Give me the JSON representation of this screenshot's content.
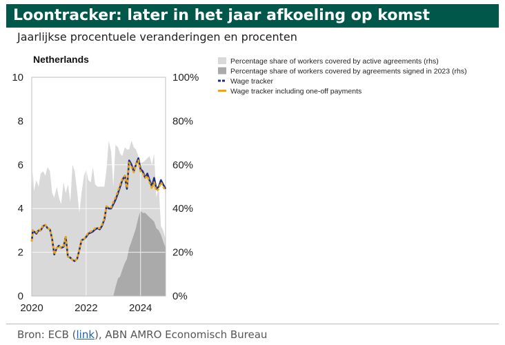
{
  "header": {
    "title": "Loontracker: later in het jaar afkoeling op komst"
  },
  "subtitle": "Jaarlijkse procentuele veranderingen en procenten",
  "source": {
    "prefix": "Bron:  ECB (",
    "link_text": "link",
    "suffix": "), ABN AMRO Economisch Bureau"
  },
  "colors": {
    "header_bg": "#00574a",
    "active_area": "#d9d9d9",
    "signed_area": "#aaaaaa",
    "wage_tracker": "#1c2e8c",
    "wage_oneoff": "#f5a500"
  },
  "chart_data": {
    "type": "line",
    "title": "Netherlands",
    "x_ticks": [
      "2020",
      "2022",
      "2024"
    ],
    "xlim": [
      2020.0,
      2024.92
    ],
    "y_left": {
      "ticks": [
        "0",
        "2",
        "4",
        "6",
        "8",
        "10"
      ],
      "lim": [
        0,
        10
      ]
    },
    "y_right": {
      "ticks": [
        "0%",
        "20%",
        "40%",
        "60%",
        "80%",
        "100%"
      ],
      "lim": [
        0,
        100
      ]
    },
    "grid": true,
    "legend_position": "right",
    "series": [
      {
        "name": "Percentage share of  workers covered by active agreements (rhs)",
        "kind": "area",
        "axis": "right",
        "x": [
          2020.0,
          2020.04,
          2020.08,
          2020.17,
          2020.25,
          2020.33,
          2020.42,
          2020.5,
          2020.58,
          2020.67,
          2020.75,
          2020.83,
          2020.92,
          2021.0,
          2021.08,
          2021.17,
          2021.25,
          2021.33,
          2021.42,
          2021.5,
          2021.58,
          2021.67,
          2021.75,
          2021.83,
          2021.92,
          2022.0,
          2022.08,
          2022.17,
          2022.25,
          2022.33,
          2022.42,
          2022.5,
          2022.58,
          2022.67,
          2022.75,
          2022.83,
          2022.92,
          2023.0,
          2023.08,
          2023.17,
          2023.25,
          2023.33,
          2023.42,
          2023.5,
          2023.58,
          2023.67,
          2023.75,
          2023.83,
          2023.92,
          2024.0,
          2024.08,
          2024.17,
          2024.25,
          2024.33,
          2024.42,
          2024.5,
          2024.58,
          2024.67,
          2024.75,
          2024.83,
          2024.92
        ],
        "values": [
          46,
          57,
          48,
          53,
          50,
          56,
          57,
          55,
          59,
          57,
          47,
          45,
          50,
          45,
          42,
          52,
          47,
          51,
          43,
          60,
          57,
          48,
          38,
          47,
          55,
          58,
          53,
          52,
          59,
          51,
          50,
          50,
          50,
          50,
          58,
          71,
          66,
          50,
          69,
          68,
          65,
          64,
          68,
          67,
          67,
          71,
          68,
          67,
          64,
          61,
          61,
          62,
          63,
          64,
          60,
          65,
          45,
          50,
          32,
          30,
          26
        ]
      },
      {
        "name": "Percentage share of  workers covered by agreements signed in 2023 (rhs)",
        "kind": "area",
        "axis": "right",
        "x": [
          2023.0,
          2023.08,
          2023.17,
          2023.25,
          2023.33,
          2023.42,
          2023.5,
          2023.58,
          2023.67,
          2023.75,
          2023.83,
          2023.92,
          2024.0,
          2024.08,
          2024.17,
          2024.25,
          2024.33,
          2024.42,
          2024.5,
          2024.58,
          2024.67,
          2024.75,
          2024.83,
          2024.92
        ],
        "values": [
          0,
          4,
          8,
          9,
          12,
          15,
          17,
          22,
          25,
          28,
          31,
          36,
          39,
          38,
          38,
          37,
          36,
          35,
          34,
          31,
          30,
          28,
          25,
          22
        ]
      },
      {
        "name": "Wage tracker",
        "kind": "line",
        "axis": "left",
        "x": [
          2020.0,
          2020.04,
          2020.08,
          2020.17,
          2020.25,
          2020.33,
          2020.42,
          2020.5,
          2020.58,
          2020.67,
          2020.75,
          2020.83,
          2020.92,
          2021.0,
          2021.08,
          2021.17,
          2021.25,
          2021.33,
          2021.42,
          2021.5,
          2021.58,
          2021.67,
          2021.75,
          2021.83,
          2021.92,
          2022.0,
          2022.08,
          2022.17,
          2022.25,
          2022.33,
          2022.42,
          2022.5,
          2022.58,
          2022.67,
          2022.75,
          2022.83,
          2022.92,
          2023.0,
          2023.08,
          2023.17,
          2023.25,
          2023.33,
          2023.42,
          2023.5,
          2023.58,
          2023.67,
          2023.75,
          2023.83,
          2023.92,
          2024.0,
          2024.08,
          2024.17,
          2024.25,
          2024.33,
          2024.42,
          2024.5,
          2024.58,
          2024.67,
          2024.75,
          2024.83,
          2024.92
        ],
        "values": [
          2.5,
          3.0,
          2.95,
          2.85,
          3.0,
          3.0,
          3.2,
          3.25,
          3.1,
          3.05,
          2.6,
          1.9,
          2.2,
          2.3,
          2.2,
          2.25,
          2.7,
          1.8,
          1.75,
          1.65,
          1.6,
          1.7,
          2.1,
          2.55,
          2.6,
          2.7,
          2.85,
          2.9,
          2.95,
          3.05,
          3.1,
          3.05,
          3.2,
          3.5,
          4.1,
          4.0,
          4.0,
          4.2,
          4.4,
          4.7,
          5.0,
          5.3,
          5.5,
          4.9,
          6.2,
          6.0,
          5.7,
          6.0,
          6.3,
          5.8,
          5.7,
          5.4,
          5.6,
          5.3,
          5.0,
          5.4,
          4.9,
          5.0,
          5.3,
          5.1,
          4.9
        ]
      },
      {
        "name": "Wage tracker including one-off payments",
        "kind": "line",
        "axis": "left",
        "x": [
          2020.0,
          2020.04,
          2020.08,
          2020.17,
          2020.25,
          2020.33,
          2020.42,
          2020.5,
          2020.58,
          2020.67,
          2020.75,
          2020.83,
          2020.92,
          2021.0,
          2021.08,
          2021.17,
          2021.25,
          2021.33,
          2021.42,
          2021.5,
          2021.58,
          2021.67,
          2021.75,
          2021.83,
          2021.92,
          2022.0,
          2022.08,
          2022.17,
          2022.25,
          2022.33,
          2022.42,
          2022.5,
          2022.58,
          2022.67,
          2022.75,
          2022.83,
          2022.92,
          2023.0,
          2023.08,
          2023.17,
          2023.25,
          2023.33,
          2023.42,
          2023.5,
          2023.58,
          2023.67,
          2023.75,
          2023.83,
          2023.92,
          2024.0,
          2024.08,
          2024.17,
          2024.25,
          2024.33,
          2024.42,
          2024.5,
          2024.58,
          2024.67,
          2024.75,
          2024.83,
          2024.92
        ],
        "values": [
          2.5,
          3.0,
          2.95,
          2.9,
          3.05,
          3.0,
          3.25,
          3.25,
          3.1,
          3.05,
          2.6,
          1.9,
          2.2,
          2.3,
          2.2,
          2.3,
          2.7,
          1.8,
          1.75,
          1.65,
          1.6,
          1.7,
          2.1,
          2.55,
          2.6,
          2.75,
          2.9,
          2.95,
          3.0,
          3.1,
          3.1,
          3.1,
          3.25,
          3.55,
          4.1,
          4.05,
          4.05,
          4.3,
          4.5,
          4.8,
          5.1,
          5.35,
          5.5,
          4.95,
          6.1,
          5.9,
          5.65,
          6.0,
          6.2,
          5.7,
          5.6,
          5.4,
          5.5,
          5.2,
          4.9,
          5.2,
          4.8,
          4.9,
          5.2,
          5.0,
          4.8
        ]
      }
    ]
  }
}
